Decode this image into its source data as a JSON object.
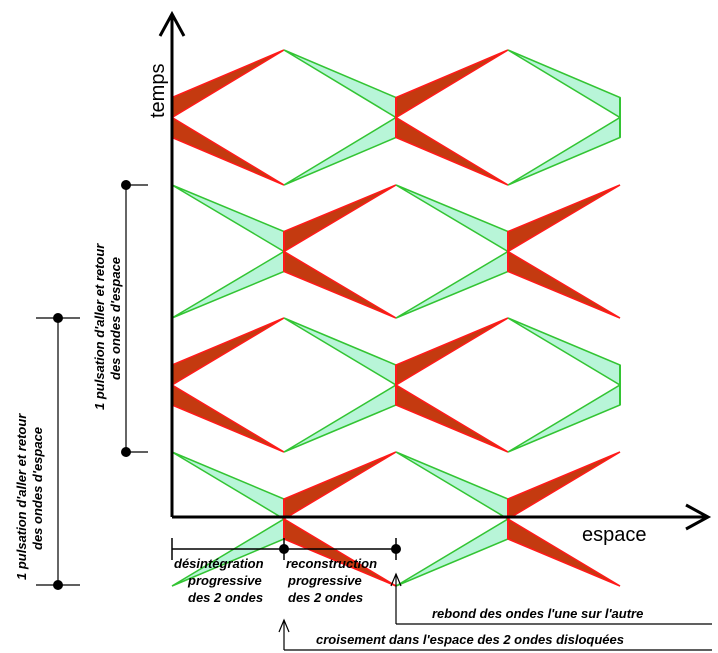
{
  "axes": {
    "y_label": "temps",
    "x_label": "espace"
  },
  "phases": [
    {
      "lines": [
        "désintégration",
        "progressive",
        "des 2 ondes"
      ]
    },
    {
      "lines": [
        "reconstruction",
        "progressive",
        "des 2 ondes"
      ]
    }
  ],
  "annotations": {
    "rebound": "rebond des ondes l'une sur l'autre",
    "crossing": "croisement dans l'espace des 2 ondes disloquées"
  },
  "pulsation_markers": [
    {
      "lines": [
        "1 pulsation d'aller et retour",
        "des ondes d'espace"
      ]
    },
    {
      "lines": [
        "1 pulsation d'aller et retour",
        "des ondes d'espace"
      ]
    }
  ],
  "colors": {
    "red_fill": "#c43a10",
    "red_stroke": "#ff1a1a",
    "green_fill": "#b8f5d8",
    "green_stroke": "#33c433",
    "axis": "#000000"
  }
}
